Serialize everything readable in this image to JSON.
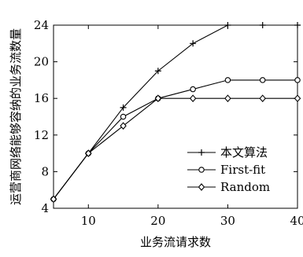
{
  "chart_data": {
    "type": "line",
    "title": "",
    "xlabel": "业务流请求数",
    "ylabel": "运营商网络能够容纳的业务流数量",
    "xlim": [
      5,
      40
    ],
    "ylim": [
      4,
      24
    ],
    "xticks": [
      10,
      20,
      30,
      40
    ],
    "yticks": [
      4,
      8,
      12,
      16,
      20,
      24
    ],
    "grid": false,
    "legend_position": "lower-right",
    "x": [
      5,
      10,
      15,
      20,
      25,
      30,
      35,
      40
    ],
    "series": [
      {
        "name": "本文算法",
        "marker": "plus",
        "values": [
          5,
          10,
          15,
          19,
          22,
          24,
          24,
          24
        ]
      },
      {
        "name": "First-fit",
        "marker": "circle",
        "values": [
          5,
          10,
          14,
          16,
          17,
          18,
          18,
          18
        ]
      },
      {
        "name": "Random",
        "marker": "diamond",
        "values": [
          5,
          10,
          13,
          16,
          16,
          16,
          16,
          16
        ]
      }
    ]
  }
}
